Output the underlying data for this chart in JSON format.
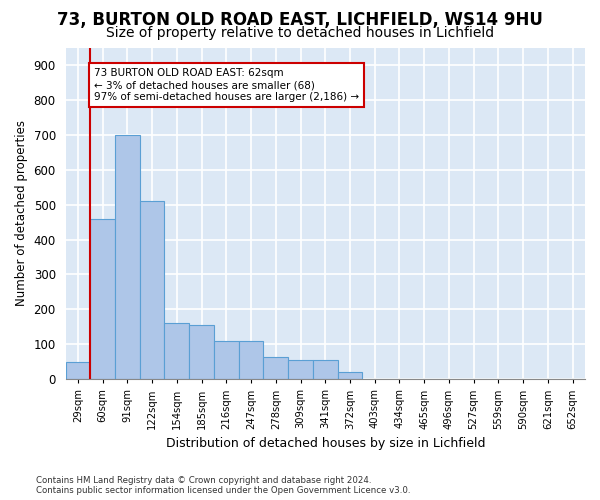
{
  "title1": "73, BURTON OLD ROAD EAST, LICHFIELD, WS14 9HU",
  "title2": "Size of property relative to detached houses in Lichfield",
  "xlabel": "Distribution of detached houses by size in Lichfield",
  "ylabel": "Number of detached properties",
  "footnote": "Contains HM Land Registry data © Crown copyright and database right 2024.\nContains public sector information licensed under the Open Government Licence v3.0.",
  "bin_labels": [
    "29sqm",
    "60sqm",
    "91sqm",
    "122sqm",
    "154sqm",
    "185sqm",
    "216sqm",
    "247sqm",
    "278sqm",
    "309sqm",
    "341sqm",
    "372sqm",
    "403sqm",
    "434sqm",
    "465sqm",
    "496sqm",
    "527sqm",
    "559sqm",
    "590sqm",
    "621sqm",
    "652sqm"
  ],
  "bar_values": [
    50,
    460,
    700,
    510,
    160,
    155,
    110,
    110,
    65,
    55,
    55,
    20,
    0,
    0,
    0,
    0,
    0,
    0,
    0,
    0,
    0
  ],
  "bar_color": "#aec6e8",
  "bar_edge_color": "#5a9fd4",
  "red_line_x": 0.5,
  "annotation_text": "73 BURTON OLD ROAD EAST: 62sqm\n← 3% of detached houses are smaller (68)\n97% of semi-detached houses are larger (2,186) →",
  "annotation_box_color": "#ffffff",
  "annotation_box_edge": "#cc0000",
  "ylim": [
    0,
    950
  ],
  "yticks": [
    0,
    100,
    200,
    300,
    400,
    500,
    600,
    700,
    800,
    900
  ],
  "plot_background": "#dce8f5",
  "grid_color": "#ffffff",
  "title1_fontsize": 12,
  "title2_fontsize": 10,
  "red_line_color": "#cc0000"
}
